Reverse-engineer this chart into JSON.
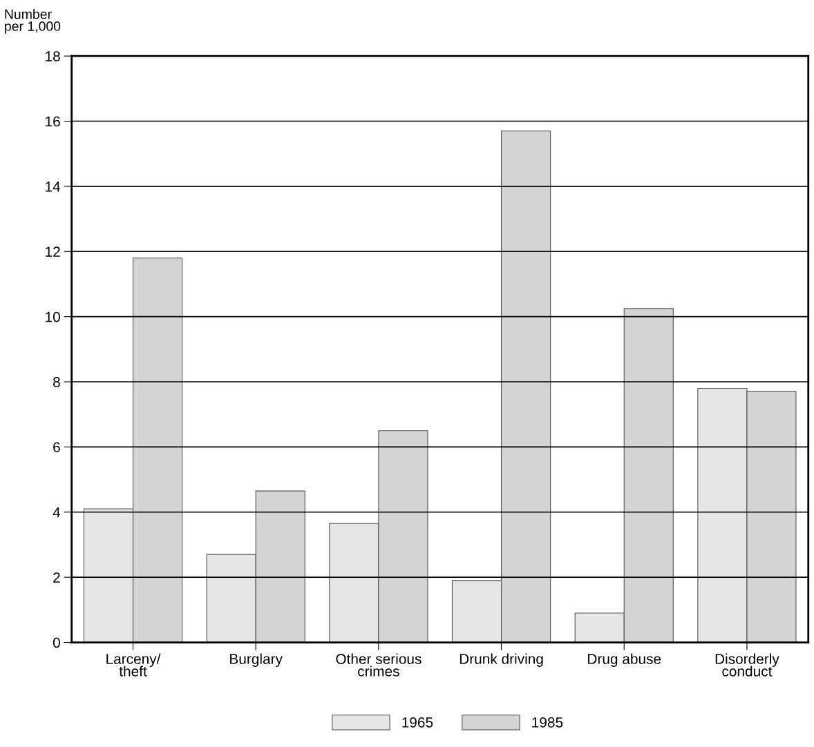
{
  "chart_data": {
    "type": "bar",
    "ylabel": "Number\nper 1,000",
    "categories": [
      "Larceny/\ntheft",
      "Burglary",
      "Other serious\ncrimes",
      "Drunk driving",
      "Drug abuse",
      "Disorderly\nconduct"
    ],
    "series": [
      {
        "name": "1965",
        "color": "#e6e6e6",
        "values": [
          4.1,
          2.7,
          3.65,
          1.9,
          0.9,
          7.8
        ]
      },
      {
        "name": "1985",
        "color": "#d4d4d4",
        "values": [
          11.8,
          4.65,
          6.5,
          15.7,
          10.25,
          7.7
        ]
      }
    ],
    "ylim": [
      0,
      18
    ],
    "yticks": [
      0,
      2,
      4,
      6,
      8,
      10,
      12,
      14,
      16,
      18
    ],
    "grid": "y",
    "legend": "bottom"
  }
}
